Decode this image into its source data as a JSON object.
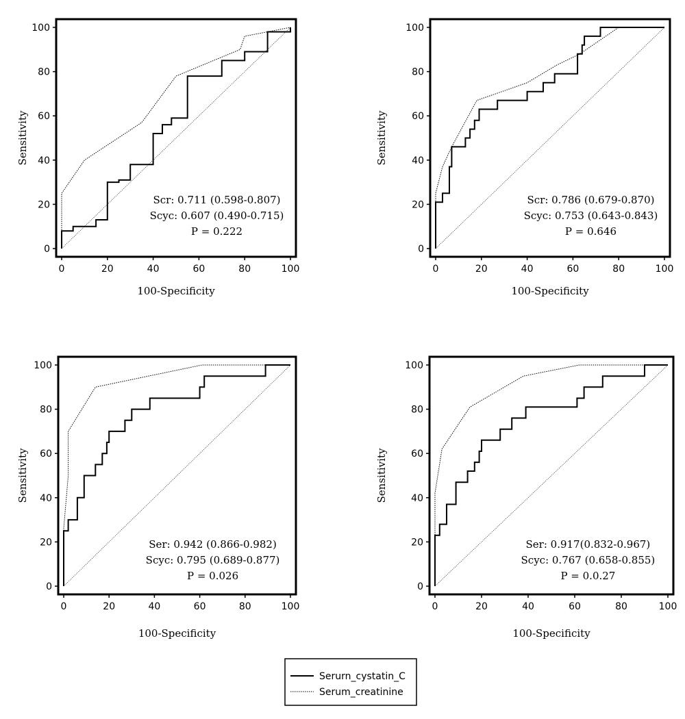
{
  "legend": {
    "items": [
      {
        "label": "Serurn_cystatin_C",
        "style": "solid"
      },
      {
        "label": "Serum_creatinine",
        "style": "dotted"
      }
    ]
  },
  "chart_data": [
    {
      "type": "line",
      "xlabel": "100-Specificity",
      "ylabel": "Sensitivity",
      "xlim": [
        0,
        100
      ],
      "ylim": [
        0,
        100
      ],
      "xticks": [
        "0",
        "20",
        "40",
        "60",
        "80",
        "100"
      ],
      "yticks": [
        "0",
        "20",
        "40",
        "60",
        "80",
        "100"
      ],
      "annotations": [
        "Scr: 0.711 (0.598-0.807)",
        "Scyc: 0.607 (0.490-0.715)",
        "P = 0.222"
      ],
      "series": [
        {
          "name": "Serurn_cystatin_C",
          "style": "solid",
          "points": [
            [
              0,
              0
            ],
            [
              0,
              8
            ],
            [
              5,
              8
            ],
            [
              5,
              10
            ],
            [
              15,
              10
            ],
            [
              15,
              13
            ],
            [
              20,
              13
            ],
            [
              20,
              30
            ],
            [
              25,
              30
            ],
            [
              25,
              31
            ],
            [
              30,
              31
            ],
            [
              30,
              38
            ],
            [
              40,
              38
            ],
            [
              40,
              52
            ],
            [
              44,
              52
            ],
            [
              44,
              56
            ],
            [
              48,
              56
            ],
            [
              48,
              59
            ],
            [
              55,
              59
            ],
            [
              55,
              78
            ],
            [
              70,
              78
            ],
            [
              70,
              85
            ],
            [
              80,
              85
            ],
            [
              80,
              89
            ],
            [
              90,
              89
            ],
            [
              90,
              98
            ],
            [
              100,
              98
            ],
            [
              100,
              100
            ]
          ]
        },
        {
          "name": "Serum_creatinine",
          "style": "dotted",
          "points": [
            [
              0,
              0
            ],
            [
              0,
              25
            ],
            [
              10,
              40
            ],
            [
              35,
              57
            ],
            [
              50,
              78
            ],
            [
              78,
              90
            ],
            [
              80,
              96
            ],
            [
              100,
              100
            ]
          ]
        },
        {
          "name": "",
          "style": "reference",
          "points": [
            [
              0,
              0
            ],
            [
              100,
              100
            ]
          ]
        }
      ]
    },
    {
      "type": "line",
      "xlabel": "100-Specificity",
      "ylabel": "Sensitivity",
      "xlim": [
        0,
        100
      ],
      "ylim": [
        0,
        100
      ],
      "xticks": [
        "0",
        "20",
        "40",
        "60",
        "80",
        "100"
      ],
      "yticks": [
        "0",
        "20",
        "40",
        "60",
        "80",
        "100"
      ],
      "annotations": [
        "Scr: 0.786 (0.679-0.870)",
        "Scyc: 0.753 (0.643-0.843)",
        "P = 0.646"
      ],
      "series": [
        {
          "name": "Serurn_cystatin_C",
          "style": "solid",
          "points": [
            [
              0,
              0
            ],
            [
              0,
              21
            ],
            [
              3,
              21
            ],
            [
              3,
              25
            ],
            [
              6,
              25
            ],
            [
              6,
              37
            ],
            [
              7,
              37
            ],
            [
              7,
              46
            ],
            [
              13,
              46
            ],
            [
              13,
              50
            ],
            [
              15,
              50
            ],
            [
              15,
              54
            ],
            [
              17,
              54
            ],
            [
              17,
              58
            ],
            [
              19,
              58
            ],
            [
              19,
              63
            ],
            [
              27,
              63
            ],
            [
              27,
              67
            ],
            [
              40,
              67
            ],
            [
              40,
              71
            ],
            [
              47,
              71
            ],
            [
              47,
              75
            ],
            [
              52,
              75
            ],
            [
              52,
              79
            ],
            [
              62,
              79
            ],
            [
              62,
              88
            ],
            [
              64,
              88
            ],
            [
              64,
              92
            ],
            [
              65,
              92
            ],
            [
              65,
              96
            ],
            [
              72,
              96
            ],
            [
              72,
              100
            ],
            [
              100,
              100
            ]
          ]
        },
        {
          "name": "Serum_creatinine",
          "style": "dotted",
          "points": [
            [
              0,
              0
            ],
            [
              0,
              25
            ],
            [
              3,
              37
            ],
            [
              7,
              46
            ],
            [
              18,
              67
            ],
            [
              40,
              75
            ],
            [
              53,
              83
            ],
            [
              63,
              88
            ],
            [
              80,
              100
            ],
            [
              100,
              100
            ]
          ]
        },
        {
          "name": "",
          "style": "reference",
          "points": [
            [
              0,
              0
            ],
            [
              100,
              100
            ]
          ]
        }
      ]
    },
    {
      "type": "line",
      "xlabel": "100-Specificity",
      "ylabel": "Sensitivity",
      "xlim": [
        0,
        100
      ],
      "ylim": [
        0,
        100
      ],
      "xticks": [
        "0",
        "20",
        "40",
        "60",
        "80",
        "100"
      ],
      "yticks": [
        "0",
        "20",
        "40",
        "60",
        "80",
        "100"
      ],
      "annotations": [
        "Ser: 0.942 (0.866-0.982)",
        "Scyc: 0.795 (0.689-0.877)",
        "P = 0.026"
      ],
      "series": [
        {
          "name": "Serurn_cystatin_C",
          "style": "solid",
          "points": [
            [
              0,
              0
            ],
            [
              0,
              25
            ],
            [
              2,
              25
            ],
            [
              2,
              30
            ],
            [
              6,
              30
            ],
            [
              6,
              40
            ],
            [
              9,
              40
            ],
            [
              9,
              50
            ],
            [
              14,
              50
            ],
            [
              14,
              55
            ],
            [
              17,
              55
            ],
            [
              17,
              60
            ],
            [
              19,
              60
            ],
            [
              19,
              65
            ],
            [
              20,
              65
            ],
            [
              20,
              70
            ],
            [
              27,
              70
            ],
            [
              27,
              75
            ],
            [
              30,
              75
            ],
            [
              30,
              80
            ],
            [
              38,
              80
            ],
            [
              38,
              85
            ],
            [
              60,
              85
            ],
            [
              60,
              90
            ],
            [
              62,
              90
            ],
            [
              62,
              95
            ],
            [
              89,
              95
            ],
            [
              89,
              100
            ],
            [
              100,
              100
            ]
          ]
        },
        {
          "name": "Serum_creatinine",
          "style": "dotted",
          "points": [
            [
              0,
              0
            ],
            [
              0,
              26
            ],
            [
              2,
              50
            ],
            [
              2,
              70
            ],
            [
              14,
              90
            ],
            [
              61,
              100
            ],
            [
              100,
              100
            ]
          ]
        },
        {
          "name": "",
          "style": "reference",
          "points": [
            [
              0,
              0
            ],
            [
              100,
              100
            ]
          ]
        }
      ]
    },
    {
      "type": "line",
      "xlabel": "100-Specificity",
      "ylabel": "Sensitivity",
      "xlim": [
        0,
        100
      ],
      "ylim": [
        0,
        100
      ],
      "xticks": [
        "0",
        "20",
        "40",
        "60",
        "80",
        "100"
      ],
      "yticks": [
        "0",
        "20",
        "40",
        "60",
        "80",
        "100"
      ],
      "annotations": [
        "Ser: 0.917(0.832-0.967)",
        "Scyc: 0.767 (0.658-0.855)",
        "P = 0.0.27"
      ],
      "series": [
        {
          "name": "Serurn_cystatin_C",
          "style": "solid",
          "points": [
            [
              0,
              0
            ],
            [
              0,
              23
            ],
            [
              2,
              23
            ],
            [
              2,
              28
            ],
            [
              5,
              28
            ],
            [
              5,
              37
            ],
            [
              9,
              37
            ],
            [
              9,
              47
            ],
            [
              14,
              47
            ],
            [
              14,
              52
            ],
            [
              17,
              52
            ],
            [
              17,
              56
            ],
            [
              19,
              56
            ],
            [
              19,
              61
            ],
            [
              20,
              61
            ],
            [
              20,
              66
            ],
            [
              28,
              66
            ],
            [
              28,
              71
            ],
            [
              33,
              71
            ],
            [
              33,
              76
            ],
            [
              39,
              76
            ],
            [
              39,
              81
            ],
            [
              61,
              81
            ],
            [
              61,
              85
            ],
            [
              64,
              85
            ],
            [
              64,
              90
            ],
            [
              72,
              90
            ],
            [
              72,
              95
            ],
            [
              90,
              95
            ],
            [
              90,
              100
            ],
            [
              100,
              100
            ]
          ]
        },
        {
          "name": "Serum_creatinine",
          "style": "dotted",
          "points": [
            [
              0,
              0
            ],
            [
              0,
              42
            ],
            [
              3,
              62
            ],
            [
              15,
              81
            ],
            [
              38,
              95
            ],
            [
              62,
              100
            ],
            [
              100,
              100
            ]
          ]
        },
        {
          "name": "",
          "style": "reference",
          "points": [
            [
              0,
              0
            ],
            [
              100,
              100
            ]
          ]
        }
      ]
    }
  ]
}
